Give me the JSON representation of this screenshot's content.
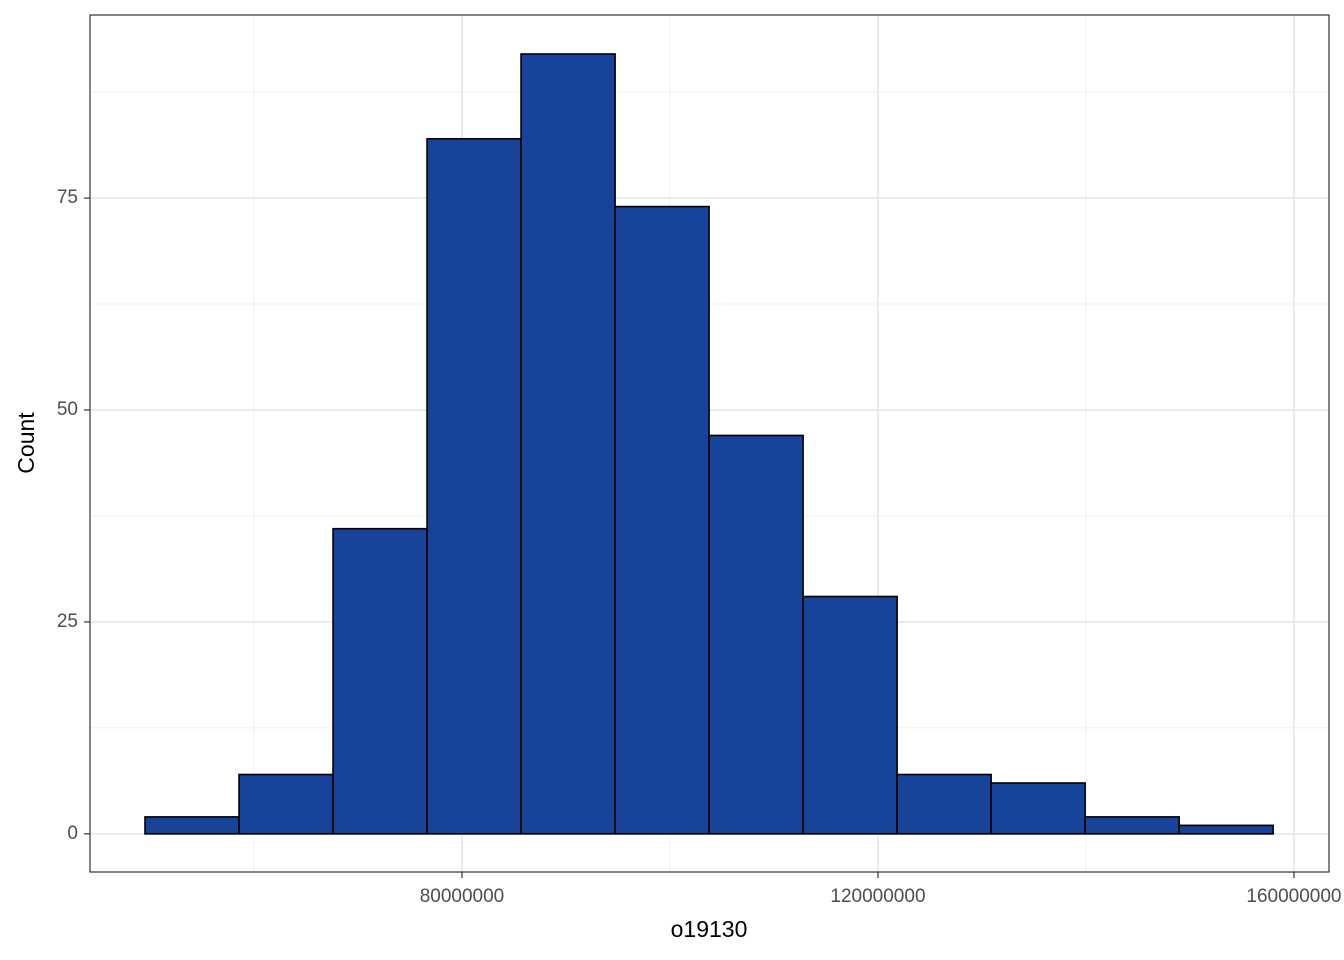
{
  "chart_data": {
    "type": "histogram",
    "x_label": "o19130",
    "y_label": "Count",
    "bins": [
      49520000,
      58560000,
      67600000,
      76640000,
      85680000,
      94720000,
      103760000,
      112800000,
      121840000,
      130880000,
      139920000,
      148960000,
      158000000
    ],
    "counts": [
      2,
      7,
      36,
      82,
      92,
      74,
      47,
      28,
      7,
      6,
      2,
      1
    ],
    "color": "#18439a",
    "edge_color": "#000000",
    "xlim": [
      44230000,
      163370000
    ],
    "xticks": [
      80000000,
      120000000,
      160000000
    ],
    "x_minor_ticks": [
      60000000,
      100000000,
      140000000
    ],
    "ylim": [
      -4.5,
      96.6
    ],
    "yticks": [
      0,
      25,
      50,
      75
    ],
    "y_minor_ticks": [
      12.5,
      37.5,
      62.5,
      87.5
    ],
    "grid": true
  }
}
